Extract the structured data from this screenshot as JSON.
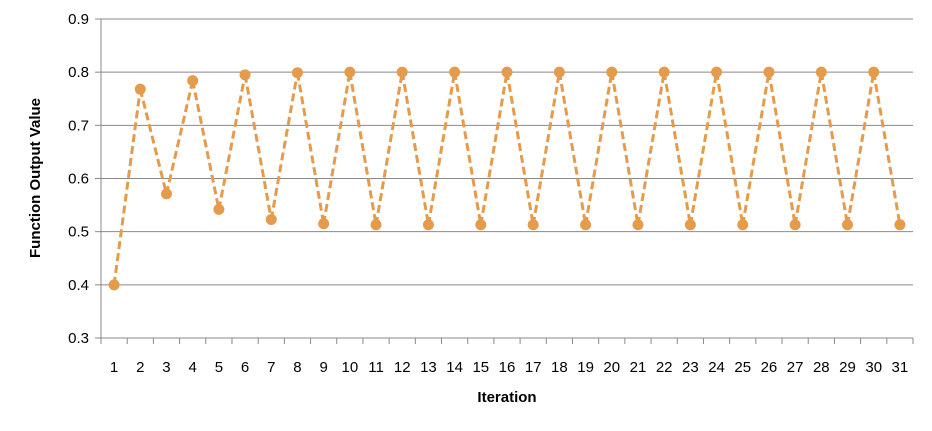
{
  "chart_data": {
    "type": "line",
    "title": "",
    "xlabel": "Iteration",
    "ylabel": "Function Output Value",
    "ylim": [
      0.3,
      0.9
    ],
    "yticks": [
      "0.3",
      "0.4",
      "0.5",
      "0.6",
      "0.7",
      "0.8",
      "0.9"
    ],
    "grid": true,
    "line_style": "dashed",
    "marker": "circle",
    "color": "#E59B4C",
    "categories": [
      "1",
      "2",
      "3",
      "4",
      "5",
      "6",
      "7",
      "8",
      "9",
      "10",
      "11",
      "12",
      "13",
      "14",
      "15",
      "16",
      "17",
      "18",
      "19",
      "20",
      "21",
      "22",
      "23",
      "24",
      "25",
      "26",
      "27",
      "28",
      "29",
      "30",
      "31"
    ],
    "series": [
      {
        "values": [
          0.4,
          0.768,
          0.571,
          0.784,
          0.542,
          0.795,
          0.523,
          0.799,
          0.515,
          0.8,
          0.513,
          0.8,
          0.513,
          0.8,
          0.513,
          0.8,
          0.513,
          0.8,
          0.513,
          0.8,
          0.513,
          0.8,
          0.513,
          0.8,
          0.513,
          0.8,
          0.513,
          0.8,
          0.513,
          0.8,
          0.513
        ]
      }
    ]
  }
}
